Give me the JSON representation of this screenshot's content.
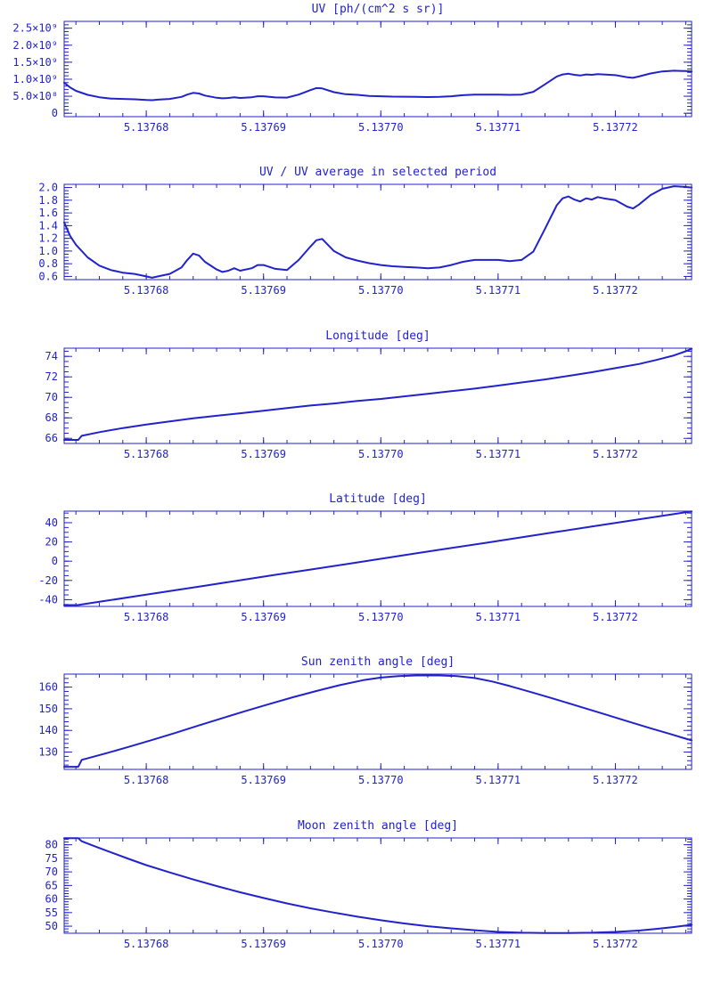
{
  "style": {
    "accent": "#2222cd",
    "background": "#ffffff"
  },
  "chart_data": [
    {
      "type": "line",
      "title": "UV [ph/(cm^2 s sr)]",
      "xlabel": "",
      "ylabel": "",
      "xlim": [
        5.137673,
        5.1377265
      ],
      "x_ticks": [
        5.13768,
        5.13769,
        5.1377,
        5.13771,
        5.13772
      ],
      "x_tick_labels": [
        "5.13768",
        "5.13769",
        "5.13770",
        "5.13771",
        "5.13772"
      ],
      "x_minor_step": 2e-06,
      "ylim": [
        -100000000.0,
        2700000000.0
      ],
      "y_ticks": [
        0,
        500000000.0,
        1000000000.0,
        1500000000.0,
        2000000000.0,
        2500000000.0
      ],
      "y_tick_labels": [
        "0",
        "5.0×10⁸",
        "1.0×10⁹",
        "1.5×10⁹",
        "2.0×10⁹",
        "2.5×10⁹"
      ],
      "y_minor_step": 100000000.0,
      "grid": false,
      "legend": null,
      "x": [
        5.137673,
        5.1376735,
        5.137674,
        5.137675,
        5.137676,
        5.137677,
        5.137678,
        5.137679,
        5.13768,
        5.1376805,
        5.137681,
        5.137682,
        5.137683,
        5.1376835,
        5.137684,
        5.1376845,
        5.137685,
        5.137686,
        5.1376865,
        5.137687,
        5.1376875,
        5.137688,
        5.137689,
        5.1376895,
        5.13769,
        5.137691,
        5.137692,
        5.137693,
        5.137694,
        5.1376945,
        5.137695,
        5.137696,
        5.137697,
        5.137698,
        5.137699,
        5.1377,
        5.137701,
        5.137702,
        5.137703,
        5.137704,
        5.137705,
        5.137706,
        5.137707,
        5.137708,
        5.137709,
        5.13771,
        5.137711,
        5.137712,
        5.137713,
        5.137714,
        5.137715,
        5.1377155,
        5.137716,
        5.1377165,
        5.137717,
        5.1377175,
        5.137718,
        5.1377185,
        5.137719,
        5.13772,
        5.137721,
        5.1377215,
        5.137722,
        5.137723,
        5.137724,
        5.137725,
        5.137726,
        5.1377265
      ],
      "y": [
        900000000.0,
        760000000.0,
        660000000.0,
        540000000.0,
        470000000.0,
        430000000.0,
        420000000.0,
        410000000.0,
        390000000.0,
        385000000.0,
        400000000.0,
        420000000.0,
        480000000.0,
        550000000.0,
        600000000.0,
        580000000.0,
        520000000.0,
        455000000.0,
        440000000.0,
        450000000.0,
        470000000.0,
        450000000.0,
        470000000.0,
        500000000.0,
        500000000.0,
        465000000.0,
        460000000.0,
        550000000.0,
        680000000.0,
        740000000.0,
        730000000.0,
        620000000.0,
        560000000.0,
        540000000.0,
        510000000.0,
        500000000.0,
        490000000.0,
        485000000.0,
        480000000.0,
        475000000.0,
        480000000.0,
        500000000.0,
        530000000.0,
        550000000.0,
        550000000.0,
        550000000.0,
        540000000.0,
        550000000.0,
        630000000.0,
        850000000.0,
        1080000000.0,
        1140000000.0,
        1160000000.0,
        1130000000.0,
        1110000000.0,
        1140000000.0,
        1130000000.0,
        1150000000.0,
        1140000000.0,
        1120000000.0,
        1060000000.0,
        1040000000.0,
        1080000000.0,
        1170000000.0,
        1230000000.0,
        1250000000.0,
        1240000000.0,
        1230000000.0
      ]
    },
    {
      "type": "line",
      "title": "UV / UV average in selected period",
      "xlabel": "",
      "ylabel": "",
      "xlim": [
        5.137673,
        5.1377265
      ],
      "x_ticks": [
        5.13768,
        5.13769,
        5.1377,
        5.13771,
        5.13772
      ],
      "x_tick_labels": [
        "5.13768",
        "5.13769",
        "5.13770",
        "5.13771",
        "5.13772"
      ],
      "x_minor_step": 2e-06,
      "ylim": [
        0.55,
        2.05
      ],
      "y_ticks": [
        0.6,
        0.8,
        1.0,
        1.2,
        1.4,
        1.6,
        1.8,
        2.0
      ],
      "y_tick_labels": [
        "0.6",
        "0.8",
        "1.0",
        "1.2",
        "1.4",
        "1.6",
        "1.8",
        "2.0"
      ],
      "y_minor_step": 0.05,
      "grid": false,
      "legend": null,
      "x": [
        5.137673,
        5.1376735,
        5.137674,
        5.137675,
        5.137676,
        5.137677,
        5.137678,
        5.137679,
        5.13768,
        5.1376805,
        5.137681,
        5.137682,
        5.137683,
        5.1376835,
        5.137684,
        5.1376845,
        5.137685,
        5.137686,
        5.1376865,
        5.137687,
        5.1376875,
        5.137688,
        5.137689,
        5.1376895,
        5.13769,
        5.137691,
        5.137692,
        5.137693,
        5.137694,
        5.1376945,
        5.137695,
        5.137696,
        5.137697,
        5.137698,
        5.137699,
        5.1377,
        5.137701,
        5.137702,
        5.137703,
        5.137704,
        5.137705,
        5.137706,
        5.137707,
        5.137708,
        5.137709,
        5.13771,
        5.137711,
        5.137712,
        5.137713,
        5.137714,
        5.137715,
        5.1377155,
        5.137716,
        5.1377165,
        5.137717,
        5.1377175,
        5.137718,
        5.1377185,
        5.137719,
        5.13772,
        5.137721,
        5.1377215,
        5.137722,
        5.137723,
        5.137724,
        5.137725,
        5.137726,
        5.1377265
      ],
      "y": [
        1.45,
        1.24,
        1.1,
        0.9,
        0.77,
        0.7,
        0.66,
        0.64,
        0.6,
        0.58,
        0.6,
        0.64,
        0.74,
        0.86,
        0.96,
        0.93,
        0.83,
        0.71,
        0.67,
        0.69,
        0.73,
        0.69,
        0.73,
        0.78,
        0.78,
        0.72,
        0.7,
        0.86,
        1.07,
        1.17,
        1.19,
        1.0,
        0.9,
        0.85,
        0.81,
        0.78,
        0.76,
        0.75,
        0.74,
        0.73,
        0.74,
        0.78,
        0.83,
        0.86,
        0.86,
        0.86,
        0.84,
        0.86,
        0.99,
        1.35,
        1.72,
        1.83,
        1.86,
        1.81,
        1.78,
        1.83,
        1.81,
        1.85,
        1.83,
        1.8,
        1.7,
        1.67,
        1.73,
        1.88,
        1.98,
        2.02,
        2.01,
        2.0
      ]
    },
    {
      "type": "line",
      "title": "Longitude [deg]",
      "xlabel": "",
      "ylabel": "",
      "xlim": [
        5.137673,
        5.1377265
      ],
      "x_ticks": [
        5.13768,
        5.13769,
        5.1377,
        5.13771,
        5.13772
      ],
      "x_tick_labels": [
        "5.13768",
        "5.13769",
        "5.13770",
        "5.13771",
        "5.13772"
      ],
      "x_minor_step": 2e-06,
      "ylim": [
        65.5,
        74.8
      ],
      "y_ticks": [
        66,
        68,
        70,
        72,
        74
      ],
      "y_tick_labels": [
        "66",
        "68",
        "70",
        "72",
        "74"
      ],
      "y_minor_step": 0.5,
      "grid": false,
      "legend": null,
      "x": [
        5.137673,
        5.1376742,
        5.1376745,
        5.137676,
        5.137678,
        5.13768,
        5.137682,
        5.137684,
        5.137686,
        5.137688,
        5.13769,
        5.137692,
        5.137694,
        5.137696,
        5.137698,
        5.1377,
        5.137702,
        5.137704,
        5.137706,
        5.137708,
        5.13771,
        5.137712,
        5.137714,
        5.137716,
        5.137718,
        5.13772,
        5.137722,
        5.1377235,
        5.137725,
        5.137726,
        5.1377265
      ],
      "y": [
        65.85,
        65.85,
        66.25,
        66.6,
        67.0,
        67.35,
        67.65,
        67.95,
        68.2,
        68.45,
        68.7,
        68.95,
        69.2,
        69.4,
        69.65,
        69.85,
        70.1,
        70.35,
        70.6,
        70.85,
        71.15,
        71.45,
        71.75,
        72.1,
        72.45,
        72.85,
        73.25,
        73.65,
        74.1,
        74.5,
        74.75
      ]
    },
    {
      "type": "line",
      "title": "Latitude [deg]",
      "xlabel": "",
      "ylabel": "",
      "xlim": [
        5.137673,
        5.1377265
      ],
      "x_ticks": [
        5.13768,
        5.13769,
        5.1377,
        5.13771,
        5.13772
      ],
      "x_tick_labels": [
        "5.13768",
        "5.13769",
        "5.13770",
        "5.13771",
        "5.13772"
      ],
      "x_minor_step": 2e-06,
      "ylim": [
        -47,
        52
      ],
      "y_ticks": [
        -40,
        -20,
        0,
        20,
        40
      ],
      "y_tick_labels": [
        "-40",
        "-20",
        "0",
        "20",
        "40"
      ],
      "y_minor_step": 5,
      "grid": false,
      "legend": null,
      "x": [
        5.137673,
        5.1376742,
        5.137676,
        5.137679,
        5.137682,
        5.137685,
        5.137688,
        5.137691,
        5.137694,
        5.137697,
        5.1377,
        5.137703,
        5.137706,
        5.137709,
        5.137712,
        5.137715,
        5.137718,
        5.137721,
        5.137724,
        5.1377265
      ],
      "y": [
        -45.6,
        -45.5,
        -42.2,
        -36.6,
        -31.0,
        -25.4,
        -19.8,
        -14.2,
        -8.7,
        -3.1,
        2.5,
        8.1,
        13.7,
        19.2,
        24.8,
        30.4,
        36.0,
        41.6,
        47.1,
        51.8
      ]
    },
    {
      "type": "line",
      "title": "Sun zenith angle [deg]",
      "xlabel": "",
      "ylabel": "",
      "xlim": [
        5.137673,
        5.1377265
      ],
      "x_ticks": [
        5.13768,
        5.13769,
        5.1377,
        5.13771,
        5.13772
      ],
      "x_tick_labels": [
        "5.13768",
        "5.13769",
        "5.13770",
        "5.13771",
        "5.13772"
      ],
      "x_minor_step": 2e-06,
      "ylim": [
        122,
        166
      ],
      "y_ticks": [
        130,
        140,
        150,
        160
      ],
      "y_tick_labels": [
        "130",
        "140",
        "150",
        "160"
      ],
      "y_minor_step": 2,
      "grid": false,
      "legend": null,
      "x": [
        5.137673,
        5.1376742,
        5.1376745,
        5.1376765,
        5.1376785,
        5.1376805,
        5.1376825,
        5.1376845,
        5.1376865,
        5.1376885,
        5.1376905,
        5.1376925,
        5.1376945,
        5.1376965,
        5.1376985,
        5.1377,
        5.1377015,
        5.137703,
        5.137705,
        5.1377065,
        5.137708,
        5.1377095,
        5.137711,
        5.137713,
        5.137715,
        5.137717,
        5.137719,
        5.137721,
        5.137723,
        5.1377245,
        5.137726,
        5.1377265
      ],
      "y": [
        123.2,
        123.2,
        126.4,
        129.3,
        132.4,
        135.6,
        138.9,
        142.3,
        145.7,
        149.0,
        152.2,
        155.3,
        158.2,
        160.9,
        163.2,
        164.4,
        165.1,
        165.4,
        165.4,
        165.1,
        164.2,
        162.6,
        160.5,
        157.4,
        154.2,
        150.9,
        147.6,
        144.3,
        141.0,
        138.6,
        136.2,
        135.4
      ]
    },
    {
      "type": "line",
      "title": "Moon zenith angle [deg]",
      "xlabel": "",
      "ylabel": "",
      "xlim": [
        5.137673,
        5.1377265
      ],
      "x_ticks": [
        5.13768,
        5.13769,
        5.1377,
        5.13771,
        5.13772
      ],
      "x_tick_labels": [
        "5.13768",
        "5.13769",
        "5.13770",
        "5.13771",
        "5.13772"
      ],
      "x_minor_step": 2e-06,
      "ylim": [
        47.4,
        82.5
      ],
      "y_ticks": [
        50,
        55,
        60,
        65,
        70,
        75,
        80
      ],
      "y_tick_labels": [
        "50",
        "55",
        "60",
        "65",
        "70",
        "75",
        "80"
      ],
      "y_minor_step": 1,
      "grid": false,
      "legend": null,
      "x": [
        5.137673,
        5.1376742,
        5.1376745,
        5.1376755,
        5.137677,
        5.1376785,
        5.13768,
        5.137682,
        5.137684,
        5.137686,
        5.137688,
        5.13769,
        5.137692,
        5.137694,
        5.137696,
        5.137698,
        5.1377,
        5.137702,
        5.137704,
        5.137706,
        5.137708,
        5.13771,
        5.137712,
        5.137714,
        5.137716,
        5.137718,
        5.13772,
        5.137722,
        5.1377235,
        5.137725,
        5.1377265
      ],
      "y": [
        82.4,
        82.4,
        81.3,
        79.6,
        77.2,
        74.8,
        72.5,
        69.8,
        67.2,
        64.8,
        62.5,
        60.4,
        58.4,
        56.6,
        55.0,
        53.5,
        52.2,
        51.0,
        50.0,
        49.2,
        48.5,
        47.9,
        47.6,
        47.5,
        47.5,
        47.6,
        47.9,
        48.4,
        49.0,
        49.7,
        50.5
      ]
    }
  ]
}
